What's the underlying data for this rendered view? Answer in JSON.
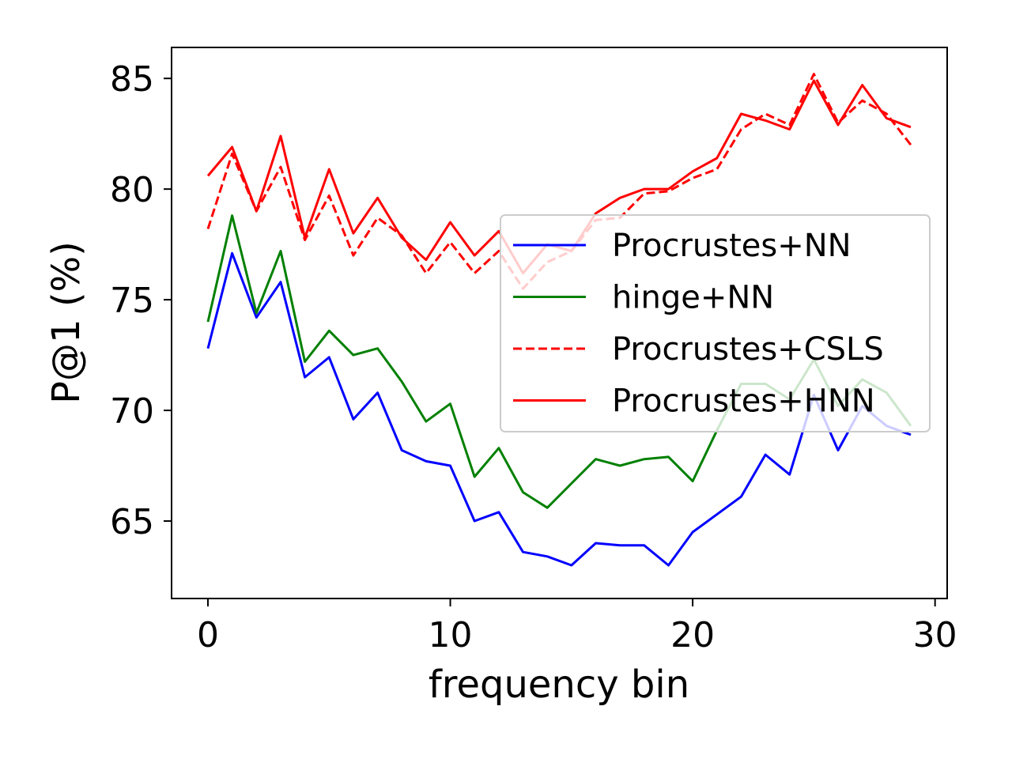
{
  "chart_data": {
    "type": "line",
    "title": "",
    "xlabel": "frequency bin",
    "ylabel": "P@1 (%)",
    "xlim": [
      -1.5,
      30.5
    ],
    "ylim": [
      61.5,
      86.4
    ],
    "xticks": [
      0,
      10,
      20,
      30
    ],
    "yticks": [
      65,
      70,
      75,
      80,
      85
    ],
    "grid": false,
    "legend_position": "center-right",
    "x": [
      0,
      1,
      2,
      3,
      4,
      5,
      6,
      7,
      8,
      9,
      10,
      11,
      12,
      13,
      14,
      15,
      16,
      17,
      18,
      19,
      20,
      21,
      22,
      23,
      24,
      25,
      26,
      27,
      28,
      29
    ],
    "series": [
      {
        "name": "Procrustes+NN",
        "color": "#0000ff",
        "dash": "solid",
        "values": [
          72.8,
          77.1,
          74.2,
          75.8,
          71.5,
          72.4,
          69.6,
          70.8,
          68.2,
          67.7,
          67.5,
          65.0,
          65.4,
          63.6,
          63.4,
          63.0,
          64.0,
          63.9,
          63.9,
          63.0,
          64.5,
          65.3,
          66.1,
          68.0,
          67.1,
          70.7,
          68.2,
          70.2,
          69.3,
          68.9
        ]
      },
      {
        "name": "hinge+NN",
        "color": "#008000",
        "dash": "solid",
        "values": [
          74.0,
          78.8,
          74.4,
          77.2,
          72.2,
          73.6,
          72.5,
          72.8,
          71.3,
          69.5,
          70.3,
          67.0,
          68.3,
          66.3,
          65.6,
          66.7,
          67.8,
          67.5,
          67.8,
          67.9,
          66.8,
          69.1,
          71.2,
          71.2,
          70.5,
          72.3,
          70.2,
          71.4,
          70.8,
          69.3
        ]
      },
      {
        "name": "Procrustes+CSLS",
        "color": "#ff0000",
        "dash": "dashed",
        "values": [
          78.2,
          81.6,
          79.0,
          81.0,
          77.7,
          79.7,
          77.0,
          78.7,
          77.9,
          76.2,
          77.6,
          76.2,
          77.2,
          75.5,
          76.7,
          77.2,
          78.6,
          78.7,
          79.8,
          79.9,
          80.5,
          80.9,
          82.7,
          83.4,
          82.9,
          85.2,
          83.0,
          84.0,
          83.4,
          82.0
        ]
      },
      {
        "name": "Procrustes+HNN",
        "color": "#ff0000",
        "dash": "solid",
        "values": [
          80.6,
          81.9,
          79.0,
          82.4,
          77.8,
          80.9,
          78.0,
          79.6,
          77.8,
          76.8,
          78.5,
          77.0,
          78.1,
          76.2,
          77.5,
          77.2,
          78.9,
          79.6,
          80.0,
          80.0,
          80.8,
          81.4,
          83.4,
          83.1,
          82.7,
          84.9,
          82.9,
          84.7,
          83.2,
          82.8
        ]
      }
    ]
  }
}
